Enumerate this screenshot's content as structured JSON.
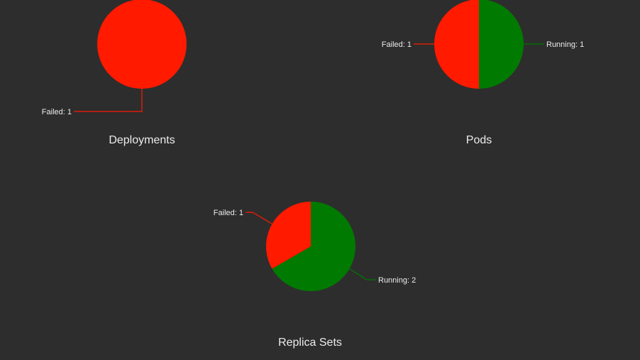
{
  "colors": {
    "background": "#2d2d2d",
    "failed": "#ff1a00",
    "running": "#007a00",
    "text": "#ececec"
  },
  "chart_data": [
    {
      "type": "pie",
      "title": "Deployments",
      "legend": "none",
      "slices": [
        {
          "label": "Failed",
          "value": 1,
          "color": "#ff1a00",
          "text": "Failed: 1"
        }
      ]
    },
    {
      "type": "pie",
      "title": "Pods",
      "legend": "none",
      "slices": [
        {
          "label": "Running",
          "value": 1,
          "color": "#007a00",
          "text": "Running: 1"
        },
        {
          "label": "Failed",
          "value": 1,
          "color": "#ff1a00",
          "text": "Failed: 1"
        }
      ]
    },
    {
      "type": "pie",
      "title": "Replica Sets",
      "legend": "none",
      "slices": [
        {
          "label": "Running",
          "value": 2,
          "color": "#007a00",
          "text": "Running: 2"
        },
        {
          "label": "Failed",
          "value": 1,
          "color": "#ff1a00",
          "text": "Failed: 1"
        }
      ]
    }
  ]
}
